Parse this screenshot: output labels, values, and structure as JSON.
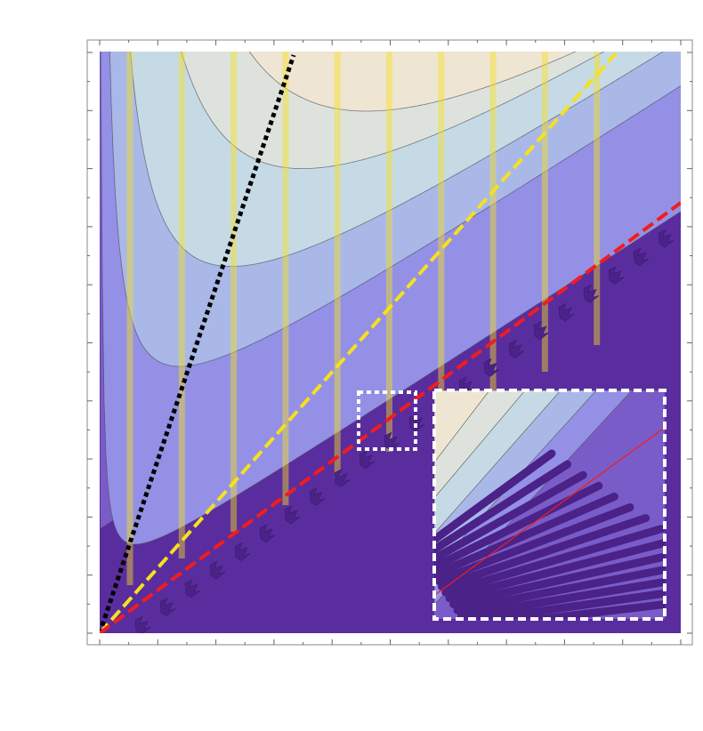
{
  "chart_data": {
    "type": "contour",
    "colors": [
      "#5a2d9e",
      "#7a5cc8",
      "#9490e6",
      "#aab8e8",
      "#c6dae6",
      "#dde3dc",
      "#efe5d3"
    ],
    "line_colors": [
      "#000000",
      "#f5e11e",
      "#f21c1c"
    ]
  }
}
